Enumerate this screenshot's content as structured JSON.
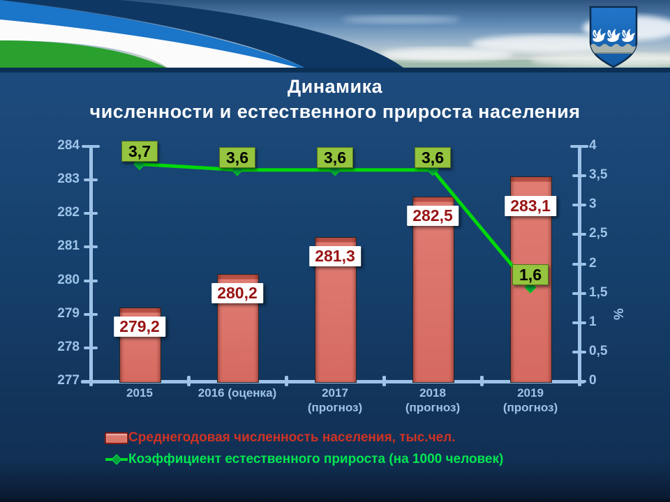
{
  "slide": {
    "title_line1": "Динамика",
    "title_line2": "численности и естественного прироста населения"
  },
  "chart_data": {
    "type": "combo-bar-line",
    "categories": [
      [
        "2015"
      ],
      [
        "2016 (оценка)"
      ],
      [
        "2017",
        "(прогноз)"
      ],
      [
        "2018",
        "(прогноз)"
      ],
      [
        "2019",
        "(прогноз)"
      ]
    ],
    "series": [
      {
        "name": "Среднегодовая численность населения, тыс.чел.",
        "type": "bar",
        "axis": "left",
        "values": [
          279.2,
          280.2,
          281.3,
          282.5,
          283.1
        ],
        "labels": [
          "279,2",
          "280,2",
          "281,3",
          "282,5",
          "283,1"
        ]
      },
      {
        "name": "Коэффициент естественного прироста (на 1000 человек)",
        "type": "line",
        "axis": "right",
        "values": [
          3.7,
          3.6,
          3.6,
          3.6,
          1.6
        ],
        "labels": [
          "3,7",
          "3,6",
          "3,6",
          "3,6",
          "1,6"
        ]
      }
    ],
    "left_axis": {
      "min": 277,
      "max": 284,
      "step": 1,
      "tick_labels": [
        "277",
        "278",
        "279",
        "280",
        "281",
        "282",
        "283",
        "284"
      ]
    },
    "right_axis": {
      "min": 0,
      "max": 4,
      "step": 0.5,
      "title": "%",
      "tick_labels": [
        "0",
        "0,5",
        "1",
        "1,5",
        "2",
        "2,5",
        "3",
        "3,5",
        "4"
      ]
    },
    "legend_position": "bottom-left",
    "grid": false
  },
  "legend": {
    "items": [
      {
        "label": "Среднегодовая численность населения, тыс.чел.",
        "marker": "bar-swatch-icon",
        "color": "#d03324"
      },
      {
        "label": "Коэффициент естественного прироста (на 1000 человек)",
        "marker": "line-diamond-icon",
        "color": "#00e650"
      }
    ]
  },
  "icons": {
    "coat_of_arms": "shield-with-three-swans-over-silver-wave"
  },
  "colors": {
    "bar": "#d5695f",
    "bar_dark": "#b84f45",
    "line": "#00d80a",
    "line_marker": "#00a33c",
    "axis": "#9ec3e8",
    "bar_label_text": "#991414",
    "green_box": "#95c43e",
    "legend_red": "#d03324",
    "legend_green": "#00e650",
    "body_top": "#1d4b7d",
    "body_bottom": "#0a1b33",
    "header_strip": "#0c2f55"
  }
}
